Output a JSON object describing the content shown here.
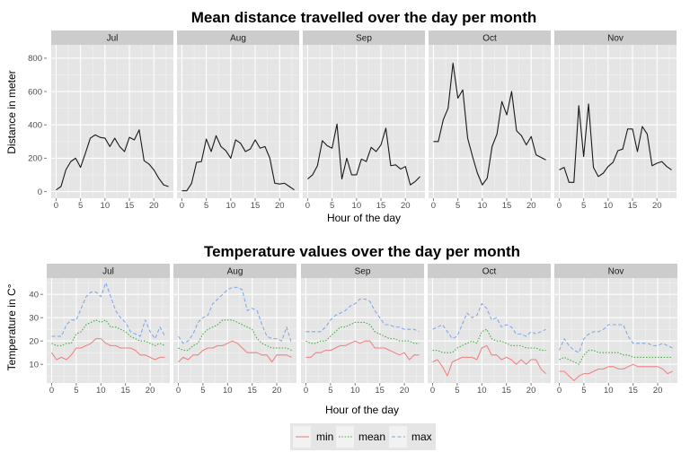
{
  "chart_data": [
    {
      "type": "line",
      "title": "Mean distance travelled over the day per month",
      "xlabel": "Hour of the day",
      "ylabel": "Distance in meter",
      "xlim": [
        -1,
        24
      ],
      "ylim": [
        -40,
        880
      ],
      "x_ticks": [
        0,
        5,
        10,
        15,
        20
      ],
      "y_ticks": [
        0,
        200,
        400,
        600,
        800
      ],
      "hours": [
        0,
        1,
        2,
        3,
        4,
        5,
        6,
        7,
        8,
        9,
        10,
        11,
        12,
        13,
        14,
        15,
        16,
        17,
        18,
        19,
        20,
        21,
        22,
        23
      ],
      "panels": [
        {
          "name": "Jul",
          "series": [
            {
              "name": "distance",
              "values": [
                10,
                30,
                130,
                180,
                200,
                145,
                230,
                320,
                340,
                325,
                320,
                270,
                320,
                270,
                240,
                325,
                310,
                370,
                185,
                165,
                130,
                80,
                40,
                30
              ]
            }
          ]
        },
        {
          "name": "Aug",
          "series": [
            {
              "name": "distance",
              "values": [
                5,
                5,
                50,
                175,
                180,
                315,
                240,
                335,
                270,
                245,
                200,
                310,
                290,
                240,
                255,
                310,
                260,
                270,
                200,
                50,
                45,
                50,
                30,
                10
              ]
            }
          ]
        },
        {
          "name": "Sep",
          "series": [
            {
              "name": "distance",
              "values": [
                75,
                100,
                155,
                305,
                275,
                260,
                405,
                75,
                200,
                100,
                100,
                195,
                180,
                265,
                240,
                280,
                380,
                155,
                160,
                135,
                150,
                40,
                60,
                90
              ]
            }
          ]
        },
        {
          "name": "Oct",
          "series": [
            {
              "name": "distance",
              "values": [
                300,
                300,
                430,
                500,
                770,
                560,
                610,
                320,
                210,
                110,
                40,
                80,
                270,
                345,
                540,
                460,
                600,
                365,
                335,
                280,
                330,
                220,
                205,
                190
              ]
            }
          ]
        },
        {
          "name": "Nov",
          "series": [
            {
              "name": "distance",
              "values": [
                130,
                145,
                55,
                55,
                515,
                210,
                525,
                145,
                90,
                110,
                150,
                175,
                245,
                255,
                375,
                375,
                240,
                390,
                345,
                155,
                170,
                180,
                150,
                130
              ]
            }
          ]
        }
      ]
    },
    {
      "type": "line",
      "title": "Temperature values over the day per month",
      "xlabel": "Hour of the day",
      "ylabel": "Temperature in C°",
      "xlim": [
        -1,
        24
      ],
      "ylim": [
        2,
        47
      ],
      "x_ticks": [
        0,
        5,
        10,
        15,
        20
      ],
      "y_ticks": [
        10,
        20,
        30,
        40
      ],
      "hours": [
        0,
        1,
        2,
        3,
        4,
        5,
        6,
        7,
        8,
        9,
        10,
        11,
        12,
        13,
        14,
        15,
        16,
        17,
        18,
        19,
        20,
        21,
        22,
        23
      ],
      "panels": [
        {
          "name": "Jul",
          "series": [
            {
              "name": "min",
              "values": [
                15,
                12,
                13,
                12,
                14,
                17,
                17,
                18,
                19,
                21,
                21,
                19,
                18,
                18,
                17,
                17,
                17,
                16,
                14,
                14,
                13,
                12,
                13,
                13
              ]
            },
            {
              "name": "mean",
              "values": [
                19,
                18,
                18,
                19,
                19,
                23,
                24,
                27,
                28,
                29,
                28,
                29,
                26,
                26,
                25,
                24,
                22,
                21,
                20,
                20,
                19,
                18,
                19,
                18
              ]
            },
            {
              "name": "max",
              "values": [
                22,
                22,
                22,
                27,
                29,
                29,
                34,
                39,
                41,
                41,
                39,
                45,
                39,
                33,
                30,
                28,
                24,
                23,
                22,
                29,
                24,
                21,
                26,
                22
              ]
            }
          ]
        },
        {
          "name": "Aug",
          "series": [
            {
              "name": "min",
              "values": [
                11,
                13,
                12,
                14,
                14,
                16,
                17,
                17,
                18,
                18,
                19,
                20,
                19,
                17,
                15,
                15,
                15,
                14,
                14,
                11,
                14,
                14,
                14,
                13
              ]
            },
            {
              "name": "mean",
              "values": [
                17,
                16,
                16,
                18,
                19,
                23,
                25,
                26,
                27,
                29,
                29,
                29,
                28,
                27,
                26,
                25,
                21,
                19,
                18,
                17,
                17,
                17,
                17,
                16
              ]
            },
            {
              "name": "max",
              "values": [
                22,
                19,
                20,
                23,
                28,
                30,
                31,
                36,
                38,
                40,
                42,
                43,
                43,
                42,
                33,
                34,
                33,
                27,
                22,
                21,
                21,
                20,
                26,
                19
              ]
            }
          ]
        },
        {
          "name": "Sep",
          "series": [
            {
              "name": "min",
              "values": [
                13,
                13,
                15,
                15,
                16,
                16,
                17,
                18,
                18,
                19,
                20,
                19,
                20,
                20,
                17,
                17,
                17,
                16,
                15,
                14,
                15,
                12,
                14,
                14
              ]
            },
            {
              "name": "mean",
              "values": [
                20,
                19,
                19,
                20,
                20,
                22,
                24,
                26,
                26,
                27,
                28,
                28,
                28,
                27,
                24,
                23,
                22,
                21,
                21,
                20,
                20,
                20,
                19,
                19
              ]
            },
            {
              "name": "max",
              "values": [
                24,
                24,
                24,
                24,
                26,
                29,
                31,
                32,
                33,
                35,
                36,
                38,
                38,
                37,
                33,
                30,
                27,
                27,
                26,
                26,
                25,
                25,
                25,
                24
              ]
            }
          ]
        },
        {
          "name": "Oct",
          "series": [
            {
              "name": "min",
              "values": [
                11,
                12,
                9,
                5,
                11,
                12,
                13,
                13,
                13,
                12,
                17,
                18,
                14,
                14,
                12,
                13,
                12,
                10,
                12,
                10,
                12,
                12,
                8,
                6
              ]
            },
            {
              "name": "mean",
              "values": [
                16,
                16,
                15,
                15,
                15,
                17,
                18,
                19,
                20,
                19,
                24,
                25,
                21,
                20,
                20,
                19,
                18,
                18,
                18,
                17,
                17,
                17,
                16,
                16
              ]
            },
            {
              "name": "max",
              "values": [
                25,
                26,
                27,
                24,
                21,
                22,
                27,
                32,
                30,
                31,
                36,
                34,
                29,
                30,
                26,
                27,
                26,
                23,
                23,
                22,
                24,
                23,
                24,
                25
              ]
            }
          ]
        },
        {
          "name": "Nov",
          "series": [
            {
              "name": "min",
              "values": [
                7,
                7,
                5,
                3,
                5,
                6,
                6,
                7,
                8,
                8,
                9,
                9,
                8,
                8,
                9,
                10,
                9,
                9,
                9,
                9,
                9,
                8,
                6,
                7
              ]
            },
            {
              "name": "mean",
              "values": [
                12,
                13,
                12,
                11,
                10,
                14,
                16,
                16,
                15,
                15,
                15,
                15,
                15,
                14,
                14,
                13,
                13,
                13,
                13,
                13,
                13,
                13,
                13,
                13
              ]
            },
            {
              "name": "max",
              "values": [
                16,
                21,
                18,
                16,
                15,
                21,
                23,
                24,
                24,
                25,
                27,
                27,
                27,
                27,
                22,
                19,
                19,
                19,
                19,
                18,
                18,
                19,
                18,
                17
              ]
            }
          ]
        }
      ]
    }
  ],
  "legend": {
    "items": [
      {
        "name": "min",
        "color": "#F08080",
        "dash": "solid"
      },
      {
        "name": "mean",
        "color": "#3BAA3B",
        "dash": "dotted"
      },
      {
        "name": "max",
        "color": "#7FA6E8",
        "dash": "dashed"
      }
    ]
  },
  "colors": {
    "distance": "#1a1a1a",
    "panel_bg": "#E5E5E5",
    "strip_bg": "#CCCCCC",
    "grid_major": "#FFFFFF",
    "grid_minor": "#F2F2F2"
  }
}
